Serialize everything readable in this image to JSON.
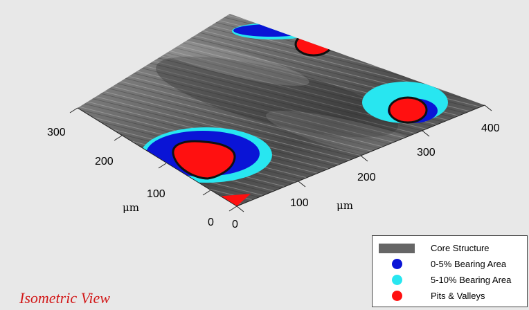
{
  "title": "Isometric View",
  "axes": {
    "y_ticks": [
      "300",
      "200",
      "100",
      "0"
    ],
    "y_unit": "μm",
    "x_ticks": [
      "0",
      "100",
      "200",
      "300",
      "400"
    ],
    "x_unit": "μm"
  },
  "legend": [
    {
      "label": "Core Structure",
      "color": "#666666",
      "shape": "rect"
    },
    {
      "label": "0-5% Bearing Area",
      "color": "#0a14d6",
      "shape": "dot"
    },
    {
      "label": "5-10% Bearing Area",
      "color": "#28e6f0",
      "shape": "dot"
    },
    {
      "label": "Pits & Valleys",
      "color": "#ff1010",
      "shape": "dot"
    }
  ]
}
